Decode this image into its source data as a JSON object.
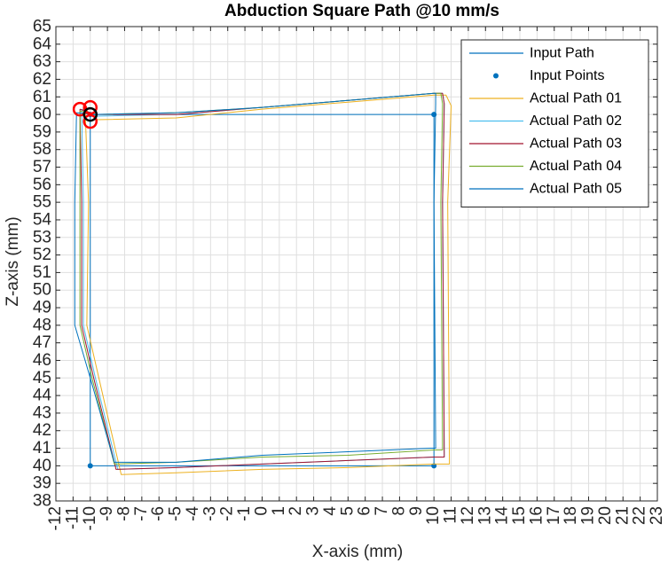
{
  "chart_data": {
    "type": "line",
    "title": "Abduction Square Path @10 mm/s",
    "xlabel": "X-axis (mm)",
    "ylabel": "Z-axis (mm)",
    "xlim": [
      -12,
      23
    ],
    "ylim": [
      38,
      65
    ],
    "xticks": [
      -12,
      -11,
      -10,
      -9,
      -8,
      -7,
      -6,
      -5,
      -4,
      -3,
      -2,
      -1,
      0,
      1,
      2,
      3,
      4,
      5,
      6,
      7,
      8,
      9,
      10,
      11,
      12,
      13,
      14,
      15,
      16,
      17,
      18,
      19,
      20,
      21,
      22,
      23
    ],
    "yticks": [
      38,
      39,
      40,
      41,
      42,
      43,
      44,
      45,
      46,
      47,
      48,
      49,
      50,
      51,
      52,
      53,
      54,
      55,
      56,
      57,
      58,
      59,
      60,
      61,
      62,
      63,
      64,
      65
    ],
    "grid": true,
    "legend_position": "top-right",
    "series": [
      {
        "name": "Input Path",
        "style": "line",
        "color": "#0072BD",
        "x": [
          -10,
          10,
          10,
          -10,
          -10
        ],
        "y": [
          60,
          60,
          40,
          40,
          60
        ]
      },
      {
        "name": "Input Points",
        "style": "markers",
        "color": "#0072BD",
        "x": [
          -10,
          10,
          10,
          -10
        ],
        "y": [
          60,
          60,
          40,
          40
        ]
      },
      {
        "name": "Actual Path 01",
        "style": "line",
        "color": "#EDB120",
        "x": [
          -10.3,
          -9.6,
          -5,
          0,
          5,
          10,
          10.7,
          11,
          10.8,
          10.9,
          10,
          5,
          0,
          -5,
          -8.2,
          -9.5,
          -10.2,
          -10.1,
          -10.3
        ],
        "y": [
          60.3,
          59.7,
          59.8,
          60.3,
          60.7,
          61.1,
          61.1,
          60.5,
          55,
          40.1,
          40.1,
          39.9,
          39.8,
          39.6,
          39.5,
          45,
          48,
          55,
          60.3
        ]
      },
      {
        "name": "Actual Path 02",
        "style": "line",
        "color": "#4DBEEE",
        "x": [
          -10.5,
          -9.6,
          -5,
          0,
          5,
          10,
          10.5,
          10.6,
          10.5,
          10.6,
          10,
          5,
          0,
          -5,
          -8.4,
          -9.7,
          -10.4,
          -10.4,
          -10.5
        ],
        "y": [
          60.3,
          59.9,
          60.0,
          60.4,
          60.8,
          61.2,
          61.2,
          60.6,
          55,
          40.5,
          40.5,
          40.3,
          40.1,
          39.9,
          39.8,
          45,
          48,
          55,
          60.3
        ]
      },
      {
        "name": "Actual Path 03",
        "style": "line",
        "color": "#A2142F",
        "x": [
          -10.6,
          -9.7,
          -5,
          0,
          5,
          10,
          10.5,
          10.6,
          10.5,
          10.6,
          10,
          5,
          0,
          -5,
          -8.5,
          -9.8,
          -10.5,
          -10.5,
          -10.6
        ],
        "y": [
          60.3,
          60.0,
          60.0,
          60.4,
          60.8,
          61.2,
          61.2,
          60.6,
          55,
          40.5,
          40.5,
          40.3,
          40.1,
          39.9,
          39.8,
          45,
          48,
          55,
          60.3
        ]
      },
      {
        "name": "Actual Path 04",
        "style": "line",
        "color": "#77AC30",
        "x": [
          -10.6,
          -9.7,
          -5,
          0,
          5,
          10,
          10.4,
          10.5,
          10.4,
          10.5,
          10,
          5,
          0,
          -5,
          -8.6,
          -9.9,
          -10.6,
          -10.6,
          -10.6
        ],
        "y": [
          60.2,
          60.0,
          60.1,
          60.4,
          60.8,
          61.2,
          61.2,
          60.6,
          55,
          40.9,
          40.9,
          40.6,
          40.5,
          40.2,
          40.1,
          45,
          48,
          55,
          60.2
        ]
      },
      {
        "name": "Actual Path 05",
        "style": "line",
        "color": "#0072BD",
        "x": [
          -10.8,
          -9.8,
          -5,
          0,
          5,
          10,
          10.1,
          10.1,
          10.0,
          10.1,
          9.8,
          5,
          0,
          -5,
          -8.6,
          -10.0,
          -10.9,
          -10.9,
          -10.8
        ],
        "y": [
          60.1,
          60.0,
          60.1,
          60.4,
          60.8,
          61.2,
          61.2,
          60.6,
          55,
          41.0,
          41.0,
          40.8,
          40.6,
          40.2,
          40.2,
          45,
          48,
          55,
          60.1
        ]
      }
    ],
    "annotations": [
      {
        "type": "circle",
        "color": "#FF0000",
        "x": -10.6,
        "y": 60.3
      },
      {
        "type": "circle",
        "color": "#FF0000",
        "x": -10.0,
        "y": 60.4
      },
      {
        "type": "circle",
        "color": "#FF0000",
        "x": -10.0,
        "y": 59.6
      },
      {
        "type": "circle",
        "color": "#000000",
        "x": -10.0,
        "y": 60.0
      }
    ]
  }
}
